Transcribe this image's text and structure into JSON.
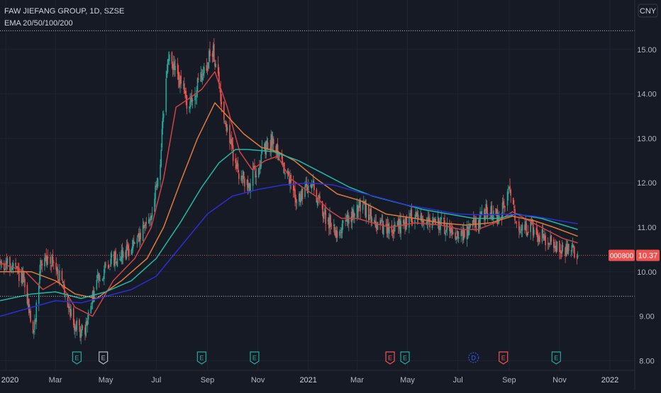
{
  "header": {
    "symbol_line": "FAW JIEFANG GROUP, 1D, SZSE",
    "indicator_line": "EMA 20/50/100/200"
  },
  "currency_label": "CNY",
  "price_badge": {
    "ticker": "000800",
    "price": "10.37"
  },
  "colors": {
    "background": "#161a25",
    "grid": "#1f2430",
    "up": "#26a69a",
    "down": "#ef5350",
    "ema20": "#d04343",
    "ema50": "#e07a3a",
    "ema100": "#21b8a6",
    "ema200": "#2c2ed6",
    "axis_text": "#b2b5be",
    "ref_line": "#cfd2d8",
    "price_line": "#ef5350"
  },
  "chart_data": {
    "type": "candlestick",
    "title": "FAW JIEFANG GROUP, 1D, SZSE",
    "ylim": [
      7.8,
      16.0
    ],
    "yticks": [
      "8.00",
      "9.00",
      "10.00",
      "11.00",
      "12.00",
      "13.00",
      "14.00",
      "15.00"
    ],
    "x_tick_labels": [
      "2020",
      "Mar",
      "May",
      "Jul",
      "Sep",
      "Nov",
      "2021",
      "Mar",
      "May",
      "Jul",
      "Sep",
      "Nov",
      "2022"
    ],
    "x_tick_dates": [
      "2020-01-01",
      "2020-03-01",
      "2020-05-01",
      "2020-07-01",
      "2020-09-01",
      "2020-11-01",
      "2021-01-01",
      "2021-03-01",
      "2021-05-01",
      "2021-07-01",
      "2021-09-01",
      "2021-11-01",
      "2022-01-01"
    ],
    "xlim": [
      "2019-12-25",
      "2022-01-31"
    ],
    "last_date": "2021-11-23",
    "horizontal_lines": [
      15.42,
      9.45
    ],
    "last_price": 10.37,
    "price_path": [
      [
        "2019-12-25",
        10.2
      ],
      [
        "2020-01-10",
        10.1
      ],
      [
        "2020-01-22",
        9.8
      ],
      [
        "2020-02-04",
        8.6
      ],
      [
        "2020-02-12",
        10.2
      ],
      [
        "2020-02-25",
        10.3
      ],
      [
        "2020-03-10",
        9.7
      ],
      [
        "2020-03-24",
        8.8
      ],
      [
        "2020-04-05",
        8.6
      ],
      [
        "2020-04-20",
        9.8
      ],
      [
        "2020-05-05",
        10.2
      ],
      [
        "2020-05-20",
        10.4
      ],
      [
        "2020-06-10",
        10.7
      ],
      [
        "2020-06-25",
        11.3
      ],
      [
        "2020-07-05",
        12.3
      ],
      [
        "2020-07-15",
        14.8
      ],
      [
        "2020-07-25",
        14.5
      ],
      [
        "2020-08-10",
        13.7
      ],
      [
        "2020-08-25",
        14.4
      ],
      [
        "2020-09-08",
        15.0
      ],
      [
        "2020-09-20",
        13.6
      ],
      [
        "2020-10-05",
        12.4
      ],
      [
        "2020-10-20",
        11.9
      ],
      [
        "2020-11-05",
        12.6
      ],
      [
        "2020-11-20",
        13.0
      ],
      [
        "2020-12-05",
        12.2
      ],
      [
        "2020-12-20",
        11.6
      ],
      [
        "2021-01-05",
        12.0
      ],
      [
        "2021-01-20",
        11.3
      ],
      [
        "2021-02-05",
        10.9
      ],
      [
        "2021-02-20",
        11.2
      ],
      [
        "2021-03-05",
        11.5
      ],
      [
        "2021-03-20",
        11.2
      ],
      [
        "2021-04-05",
        10.9
      ],
      [
        "2021-04-20",
        11.0
      ],
      [
        "2021-05-10",
        11.3
      ],
      [
        "2021-06-01",
        11.1
      ],
      [
        "2021-06-20",
        11.0
      ],
      [
        "2021-07-05",
        10.8
      ],
      [
        "2021-07-20",
        11.0
      ],
      [
        "2021-08-05",
        11.4
      ],
      [
        "2021-08-20",
        11.2
      ],
      [
        "2021-09-01",
        11.8
      ],
      [
        "2021-09-12",
        11.0
      ],
      [
        "2021-09-25",
        11.0
      ],
      [
        "2021-10-10",
        10.8
      ],
      [
        "2021-10-25",
        10.6
      ],
      [
        "2021-11-10",
        10.5
      ],
      [
        "2021-11-23",
        10.37
      ]
    ],
    "series": [
      {
        "name": "EMA 20",
        "key": "ema20",
        "values": [
          [
            "2019-12-25",
            10.2
          ],
          [
            "2020-01-25",
            10.0
          ],
          [
            "2020-02-15",
            9.6
          ],
          [
            "2020-03-05",
            9.8
          ],
          [
            "2020-03-25",
            9.2
          ],
          [
            "2020-04-15",
            9.0
          ],
          [
            "2020-05-10",
            9.8
          ],
          [
            "2020-06-05",
            10.3
          ],
          [
            "2020-06-25",
            11.0
          ],
          [
            "2020-07-10",
            12.1
          ],
          [
            "2020-07-25",
            13.7
          ],
          [
            "2020-08-10",
            13.9
          ],
          [
            "2020-08-25",
            14.1
          ],
          [
            "2020-09-10",
            14.5
          ],
          [
            "2020-09-25",
            13.7
          ],
          [
            "2020-10-10",
            12.7
          ],
          [
            "2020-10-25",
            12.3
          ],
          [
            "2020-11-10",
            12.5
          ],
          [
            "2020-11-25",
            12.6
          ],
          [
            "2020-12-10",
            12.1
          ],
          [
            "2020-12-25",
            11.9
          ],
          [
            "2021-01-10",
            11.7
          ],
          [
            "2021-01-25",
            11.4
          ],
          [
            "2021-02-10",
            11.2
          ],
          [
            "2021-03-01",
            11.2
          ],
          [
            "2021-03-20",
            11.1
          ],
          [
            "2021-04-10",
            11.0
          ],
          [
            "2021-05-10",
            11.1
          ],
          [
            "2021-06-10",
            11.05
          ],
          [
            "2021-07-05",
            10.95
          ],
          [
            "2021-07-25",
            10.95
          ],
          [
            "2021-08-15",
            11.1
          ],
          [
            "2021-09-05",
            11.35
          ],
          [
            "2021-09-25",
            11.15
          ],
          [
            "2021-10-15",
            10.95
          ],
          [
            "2021-11-05",
            10.75
          ],
          [
            "2021-11-23",
            10.65
          ]
        ]
      },
      {
        "name": "EMA 50",
        "key": "ema50",
        "values": [
          [
            "2019-12-25",
            10.0
          ],
          [
            "2020-02-01",
            10.0
          ],
          [
            "2020-03-01",
            9.8
          ],
          [
            "2020-03-25",
            9.5
          ],
          [
            "2020-04-20",
            9.4
          ],
          [
            "2020-05-20",
            9.8
          ],
          [
            "2020-06-20",
            10.3
          ],
          [
            "2020-07-10",
            11.0
          ],
          [
            "2020-07-30",
            12.0
          ],
          [
            "2020-08-20",
            13.0
          ],
          [
            "2020-09-10",
            13.8
          ],
          [
            "2020-09-25",
            13.5
          ],
          [
            "2020-10-15",
            13.1
          ],
          [
            "2020-11-05",
            12.8
          ],
          [
            "2020-11-25",
            12.7
          ],
          [
            "2020-12-15",
            12.5
          ],
          [
            "2021-01-10",
            12.1
          ],
          [
            "2021-02-05",
            11.75
          ],
          [
            "2021-03-05",
            11.6
          ],
          [
            "2021-04-05",
            11.3
          ],
          [
            "2021-05-10",
            11.2
          ],
          [
            "2021-06-10",
            11.1
          ],
          [
            "2021-07-10",
            11.05
          ],
          [
            "2021-08-10",
            11.1
          ],
          [
            "2021-09-05",
            11.25
          ],
          [
            "2021-10-01",
            11.15
          ],
          [
            "2021-10-25",
            11.0
          ],
          [
            "2021-11-23",
            10.8
          ]
        ]
      },
      {
        "name": "EMA 100",
        "key": "ema100",
        "values": [
          [
            "2019-12-25",
            9.35
          ],
          [
            "2020-02-01",
            9.5
          ],
          [
            "2020-03-01",
            9.55
          ],
          [
            "2020-04-01",
            9.4
          ],
          [
            "2020-05-01",
            9.55
          ],
          [
            "2020-06-01",
            9.8
          ],
          [
            "2020-07-01",
            10.3
          ],
          [
            "2020-07-30",
            11.1
          ],
          [
            "2020-08-25",
            11.9
          ],
          [
            "2020-09-15",
            12.45
          ],
          [
            "2020-10-05",
            12.75
          ],
          [
            "2020-10-20",
            12.75
          ],
          [
            "2020-11-20",
            12.7
          ],
          [
            "2020-12-20",
            12.5
          ],
          [
            "2021-01-20",
            12.2
          ],
          [
            "2021-02-20",
            11.9
          ],
          [
            "2021-03-20",
            11.7
          ],
          [
            "2021-04-20",
            11.55
          ],
          [
            "2021-05-20",
            11.4
          ],
          [
            "2021-06-20",
            11.3
          ],
          [
            "2021-07-20",
            11.2
          ],
          [
            "2021-08-20",
            11.2
          ],
          [
            "2021-09-10",
            11.3
          ],
          [
            "2021-10-10",
            11.2
          ],
          [
            "2021-11-23",
            10.95
          ]
        ]
      },
      {
        "name": "EMA 200",
        "key": "ema200",
        "values": [
          [
            "2019-12-25",
            9.0
          ],
          [
            "2020-02-01",
            9.2
          ],
          [
            "2020-03-01",
            9.35
          ],
          [
            "2020-04-01",
            9.3
          ],
          [
            "2020-05-01",
            9.45
          ],
          [
            "2020-06-01",
            9.6
          ],
          [
            "2020-07-01",
            9.9
          ],
          [
            "2020-08-01",
            10.6
          ],
          [
            "2020-09-01",
            11.3
          ],
          [
            "2020-10-01",
            11.7
          ],
          [
            "2020-11-01",
            11.85
          ],
          [
            "2020-12-01",
            11.95
          ],
          [
            "2021-01-01",
            12.0
          ],
          [
            "2021-02-01",
            11.95
          ],
          [
            "2021-03-01",
            11.8
          ],
          [
            "2021-04-01",
            11.65
          ],
          [
            "2021-05-01",
            11.5
          ],
          [
            "2021-06-01",
            11.4
          ],
          [
            "2021-07-01",
            11.3
          ],
          [
            "2021-08-01",
            11.28
          ],
          [
            "2021-09-01",
            11.3
          ],
          [
            "2021-10-01",
            11.25
          ],
          [
            "2021-11-01",
            11.15
          ],
          [
            "2021-11-23",
            11.08
          ]
        ]
      }
    ],
    "event_markers": [
      {
        "date": "2020-03-27",
        "kind": "earnings",
        "label": "E",
        "color": "#26a69a"
      },
      {
        "date": "2020-04-28",
        "kind": "earnings",
        "label": "E",
        "color": "#b2b5be"
      },
      {
        "date": "2020-08-25",
        "kind": "earnings",
        "label": "E",
        "color": "#26a69a"
      },
      {
        "date": "2020-10-28",
        "kind": "earnings",
        "label": "E",
        "color": "#26a69a"
      },
      {
        "date": "2021-04-10",
        "kind": "earnings",
        "label": "E",
        "color": "#ef5350"
      },
      {
        "date": "2021-04-28",
        "kind": "earnings",
        "label": "E",
        "color": "#26a69a"
      },
      {
        "date": "2021-07-20",
        "kind": "dividend",
        "label": "D",
        "color": "#2962ff"
      },
      {
        "date": "2021-08-25",
        "kind": "earnings",
        "label": "E",
        "color": "#ef5350"
      },
      {
        "date": "2021-10-28",
        "kind": "earnings",
        "label": "E",
        "color": "#26a69a"
      }
    ]
  }
}
